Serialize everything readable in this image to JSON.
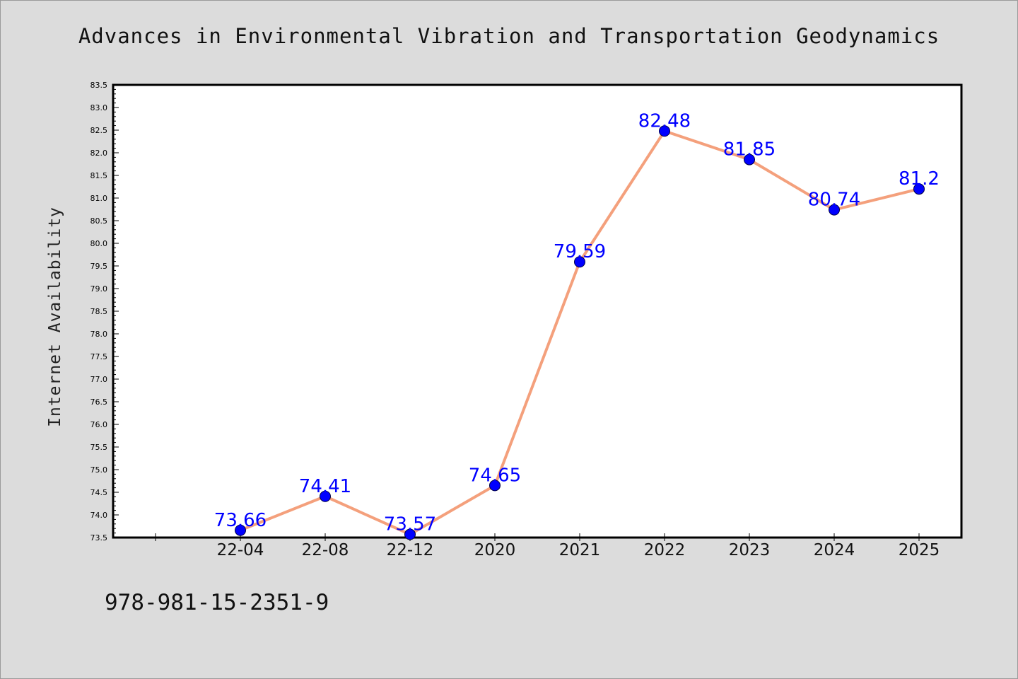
{
  "chart_data": {
    "type": "line",
    "title": "Advances in Environmental Vibration and Transportation Geodynamics",
    "xlabel": "",
    "ylabel": "Internet Availability",
    "categories": [
      "",
      "22-04",
      "22-08",
      "22-12",
      "2020",
      "2021",
      "2022",
      "2023",
      "2024",
      "2025"
    ],
    "series": [
      {
        "values": [
          null,
          73.66,
          74.41,
          73.57,
          74.65,
          79.59,
          82.48,
          81.85,
          80.74,
          81.2
        ],
        "labels": [
          "",
          "73.66",
          "74.41",
          "73.57",
          "74.65",
          "79.59",
          "82.48",
          "81.85",
          "80.74",
          "81.2"
        ],
        "line_color": "#f4a07c",
        "marker_color": "#0000ff",
        "label_color": "#0000ff"
      }
    ],
    "ylim": [
      73.5,
      83.5
    ],
    "yticks": [
      "73.5",
      "74.0",
      "74.5",
      "75.0",
      "75.5",
      "76.0",
      "76.5",
      "77.0",
      "77.5",
      "78.0",
      "78.5",
      "79.0",
      "79.5",
      "80.0",
      "80.5",
      "81.0",
      "81.5",
      "82.0",
      "82.5",
      "83.0",
      "83.5"
    ],
    "grid": false,
    "legend": "none"
  },
  "footnote": "978-981-15-2351-9"
}
